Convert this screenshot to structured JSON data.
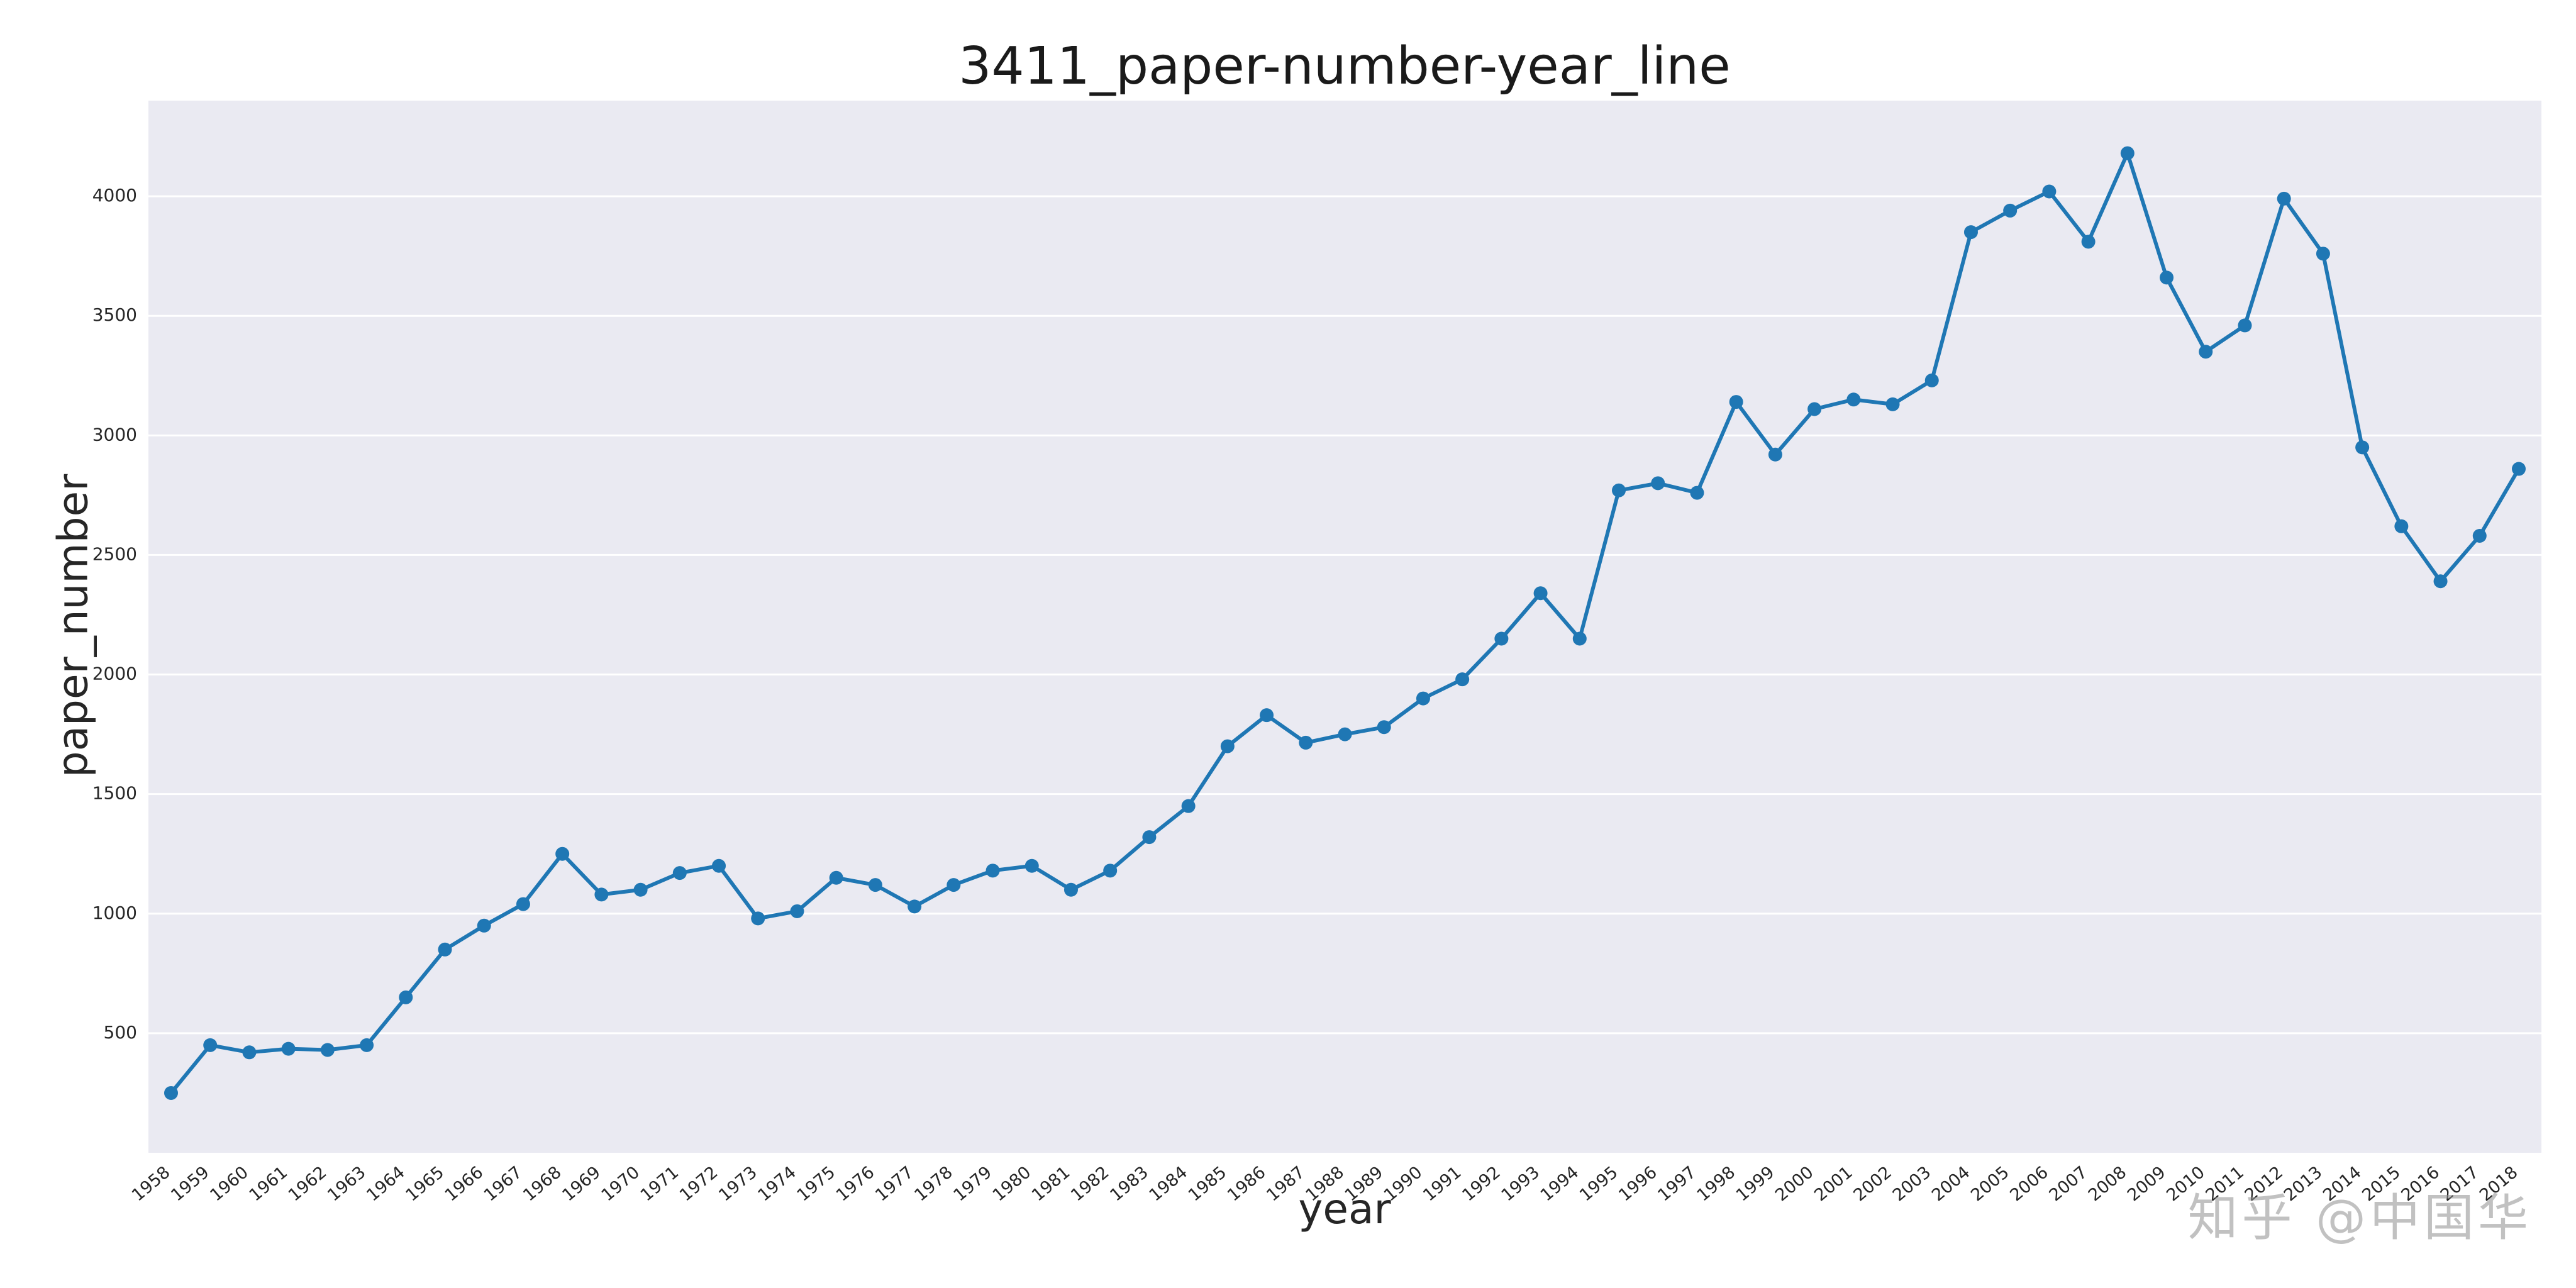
{
  "chart_data": {
    "type": "line",
    "title": "3411_paper-number-year_line",
    "xlabel": "year",
    "ylabel": "paper_number",
    "legend": null,
    "grid": "horizontal-white-on-lavender",
    "plot_bg": "#eaeaf2",
    "line_color": "#1f77b4",
    "marker": "circle",
    "ylim": [
      0,
      4400
    ],
    "yticks": [
      500,
      1000,
      1500,
      2000,
      2500,
      3000,
      3500,
      4000
    ],
    "categories": [
      1958,
      1959,
      1960,
      1961,
      1962,
      1963,
      1964,
      1965,
      1966,
      1967,
      1968,
      1969,
      1970,
      1971,
      1972,
      1973,
      1974,
      1975,
      1976,
      1977,
      1978,
      1979,
      1980,
      1981,
      1982,
      1983,
      1984,
      1985,
      1986,
      1987,
      1988,
      1989,
      1990,
      1991,
      1992,
      1993,
      1994,
      1995,
      1996,
      1997,
      1998,
      1999,
      2000,
      2001,
      2002,
      2003,
      2004,
      2005,
      2006,
      2007,
      2008,
      2009,
      2010,
      2011,
      2012,
      2013,
      2014,
      2015,
      2016,
      2017,
      2018
    ],
    "values": [
      250,
      450,
      420,
      435,
      430,
      450,
      650,
      850,
      950,
      1040,
      1250,
      1080,
      1100,
      1170,
      1200,
      980,
      1010,
      1150,
      1120,
      1030,
      1120,
      1180,
      1200,
      1100,
      1180,
      1320,
      1450,
      1700,
      1830,
      1715,
      1750,
      1780,
      1900,
      1980,
      2150,
      2340,
      2150,
      2770,
      2800,
      2760,
      3140,
      2920,
      3110,
      3150,
      3130,
      3230,
      3850,
      3940,
      4020,
      3810,
      4180,
      3660,
      3350,
      3460,
      3990,
      3760,
      2950,
      2620,
      2390,
      2580,
      2860
    ]
  },
  "watermark": {
    "text": "知乎 @中国华"
  }
}
